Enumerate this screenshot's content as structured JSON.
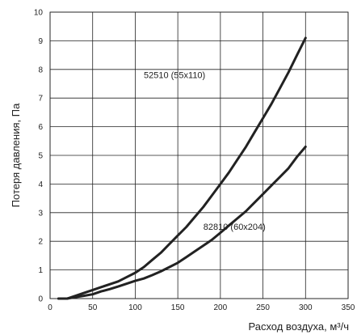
{
  "chart_data": {
    "type": "line",
    "title": "",
    "xlabel": "Расход воздуха, м³/ч",
    "ylabel": "Потеря давления, Па",
    "xlim": [
      0,
      350
    ],
    "ylim": [
      0,
      10
    ],
    "x_ticks": [
      "0",
      "50",
      "100",
      "150",
      "200",
      "250",
      "300",
      "350"
    ],
    "y_ticks": [
      "0",
      "1",
      "2",
      "3",
      "4",
      "5",
      "6",
      "7",
      "8",
      "9",
      "10"
    ],
    "grid": true,
    "legend": "none",
    "line_color": "#222222",
    "series": [
      {
        "name": "52510 (55x110)",
        "x": [
          10,
          20,
          30,
          40,
          50,
          60,
          70,
          80,
          90,
          100,
          110,
          120,
          130,
          140,
          150,
          160,
          170,
          180,
          190,
          200,
          210,
          220,
          230,
          240,
          250,
          260,
          270,
          280,
          290,
          300
        ],
        "y": [
          0,
          0,
          0.1,
          0.2,
          0.3,
          0.4,
          0.5,
          0.6,
          0.75,
          0.9,
          1.1,
          1.35,
          1.6,
          1.9,
          2.2,
          2.5,
          2.85,
          3.2,
          3.6,
          4.0,
          4.4,
          4.85,
          5.3,
          5.8,
          6.3,
          6.8,
          7.35,
          7.9,
          8.5,
          9.1
        ]
      },
      {
        "name": "82810 (60x204)",
        "x": [
          10,
          20,
          30,
          40,
          50,
          60,
          70,
          80,
          90,
          100,
          110,
          120,
          130,
          140,
          150,
          160,
          170,
          180,
          190,
          200,
          210,
          220,
          230,
          240,
          250,
          260,
          270,
          280,
          290,
          300
        ],
        "y": [
          0,
          0,
          0.05,
          0.1,
          0.15,
          0.25,
          0.33,
          0.42,
          0.52,
          0.62,
          0.7,
          0.82,
          0.95,
          1.1,
          1.25,
          1.45,
          1.65,
          1.85,
          2.05,
          2.3,
          2.55,
          2.8,
          3.05,
          3.35,
          3.65,
          3.95,
          4.25,
          4.55,
          4.95,
          5.3
        ]
      }
    ]
  }
}
